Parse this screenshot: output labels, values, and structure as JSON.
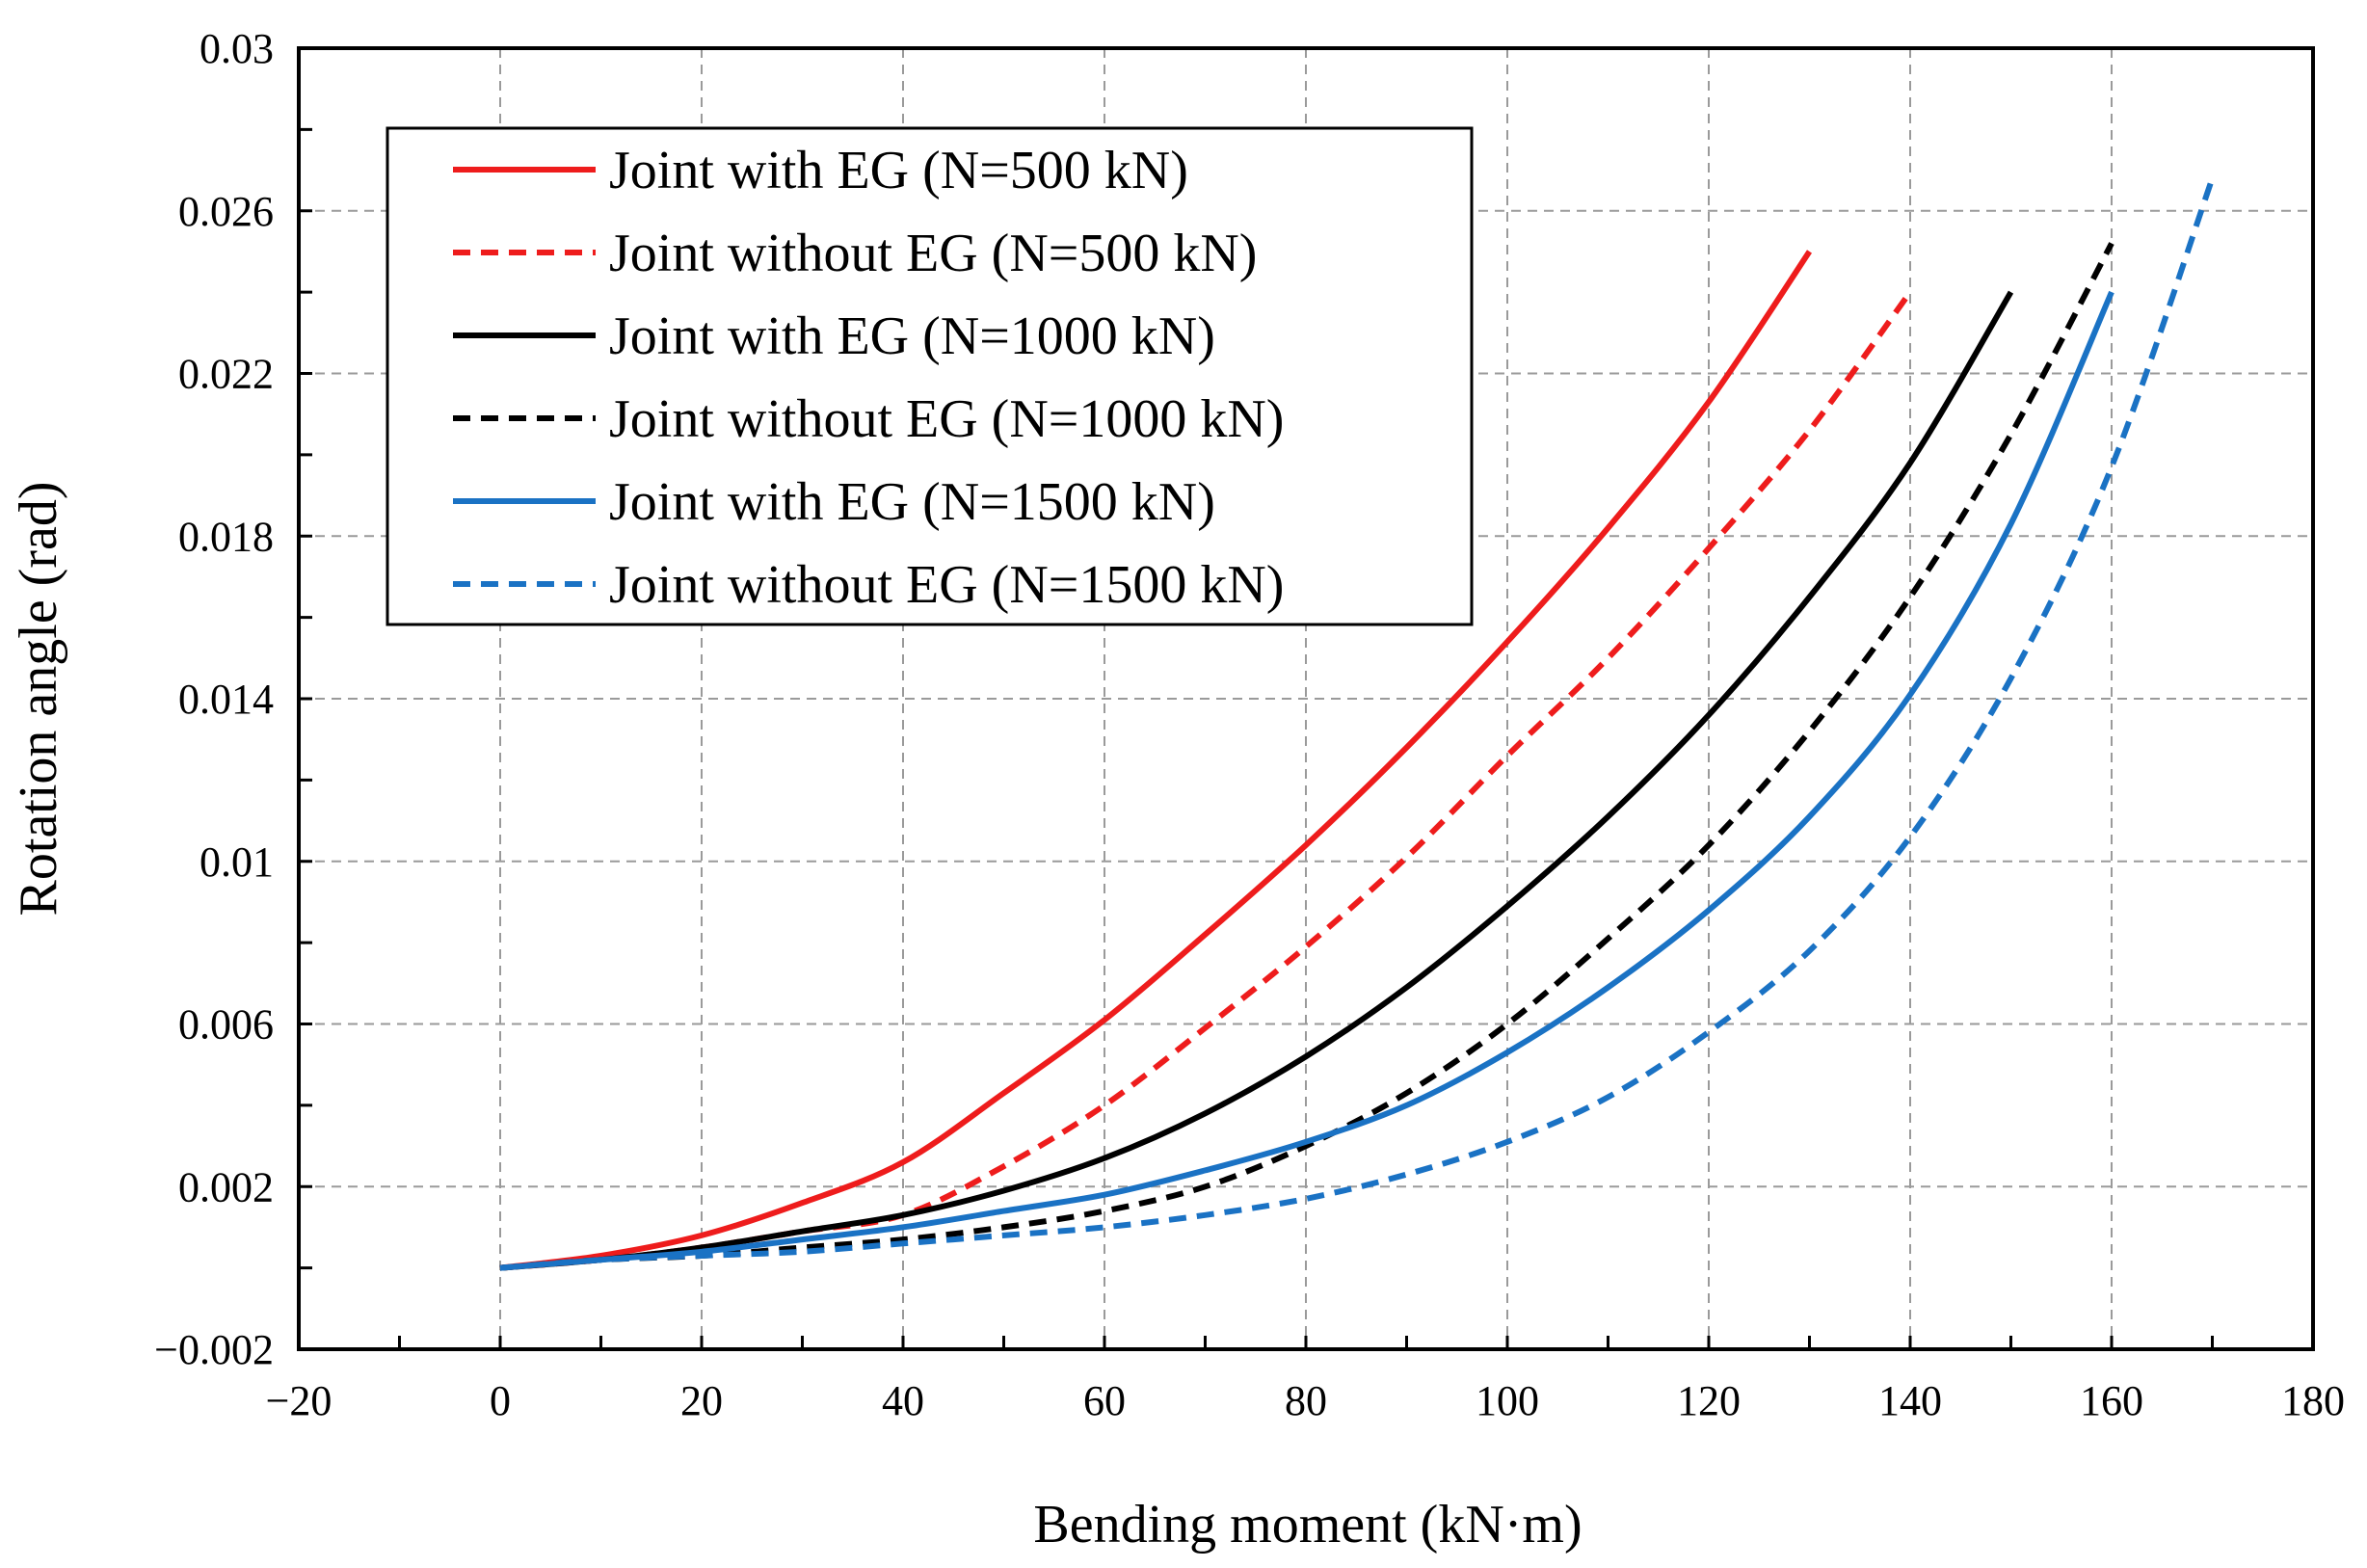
{
  "chart_data": {
    "type": "line",
    "title": "",
    "xlabel": "Bending moment (kN·m)",
    "ylabel": "Rotation angle (rad)",
    "xlim": [
      -20,
      180
    ],
    "ylim": [
      -0.002,
      0.03
    ],
    "x_ticks": [
      -20,
      0,
      20,
      40,
      60,
      80,
      100,
      120,
      140,
      160,
      180
    ],
    "x_tick_labels": [
      "−20",
      "0",
      "20",
      "40",
      "60",
      "80",
      "100",
      "120",
      "140",
      "160",
      "180"
    ],
    "y_ticks": [
      -0.002,
      0.002,
      0.006,
      0.01,
      0.014,
      0.018,
      0.022,
      0.026,
      0.03
    ],
    "y_tick_labels": [
      "−0.002",
      "0.002",
      "0.006",
      "0.01",
      "0.014",
      "0.018",
      "0.022",
      "0.026",
      "0.03"
    ],
    "grid": true,
    "legend_position": "top-left",
    "series": [
      {
        "name": "Joint with EG (N=500 kN)",
        "color": "#ee1c1c",
        "dash": "solid",
        "x": [
          0,
          10,
          20,
          30,
          40,
          50,
          60,
          70,
          80,
          90,
          100,
          110,
          120,
          130
        ],
        "y": [
          0.0,
          0.0003,
          0.0008,
          0.0016,
          0.0026,
          0.0043,
          0.0061,
          0.0082,
          0.0104,
          0.0128,
          0.0154,
          0.0182,
          0.0213,
          0.025
        ]
      },
      {
        "name": "Joint without EG (N=500 kN)",
        "color": "#ee1c1c",
        "dash": "dashed",
        "x": [
          0,
          10,
          20,
          30,
          40,
          50,
          60,
          70,
          80,
          90,
          100,
          110,
          120,
          130,
          140
        ],
        "y": [
          0.0,
          0.0002,
          0.0005,
          0.0009,
          0.0013,
          0.0025,
          0.004,
          0.0059,
          0.0079,
          0.0101,
          0.0126,
          0.015,
          0.0177,
          0.0206,
          0.024
        ]
      },
      {
        "name": "Joint with EG (N=1000 kN)",
        "color": "#000000",
        "dash": "solid",
        "x": [
          0,
          10,
          20,
          30,
          40,
          50,
          60,
          70,
          80,
          90,
          100,
          110,
          120,
          130,
          140,
          150
        ],
        "y": [
          0.0,
          0.0002,
          0.0005,
          0.0009,
          0.0013,
          0.0019,
          0.0027,
          0.0038,
          0.0052,
          0.0069,
          0.0089,
          0.0111,
          0.0136,
          0.0165,
          0.0198,
          0.024
        ]
      },
      {
        "name": "Joint without EG (N=1000 kN)",
        "color": "#000000",
        "dash": "dashed",
        "x": [
          0,
          10,
          20,
          30,
          40,
          50,
          60,
          70,
          80,
          90,
          100,
          110,
          120,
          130,
          140,
          150,
          160
        ],
        "y": [
          0.0,
          0.0002,
          0.0003,
          0.0005,
          0.0007,
          0.001,
          0.0014,
          0.002,
          0.003,
          0.0043,
          0.006,
          0.0081,
          0.0104,
          0.0132,
          0.0165,
          0.0205,
          0.0252
        ]
      },
      {
        "name": "Joint with EG (N=1500 kN)",
        "color": "#1a72c4",
        "dash": "solid",
        "x": [
          0,
          10,
          20,
          30,
          40,
          50,
          60,
          70,
          80,
          90,
          100,
          110,
          120,
          130,
          140,
          150,
          160
        ],
        "y": [
          0.0,
          0.0002,
          0.0004,
          0.0007,
          0.001,
          0.0014,
          0.0018,
          0.0024,
          0.0031,
          0.004,
          0.0053,
          0.0069,
          0.0088,
          0.0111,
          0.0141,
          0.0183,
          0.024
        ]
      },
      {
        "name": "Joint without EG (N=1500 kN)",
        "color": "#1a72c4",
        "dash": "dashed",
        "x": [
          0,
          10,
          20,
          30,
          40,
          50,
          60,
          70,
          80,
          90,
          100,
          110,
          120,
          130,
          140,
          150,
          160,
          170
        ],
        "y": [
          0.0,
          0.0002,
          0.0003,
          0.0004,
          0.0006,
          0.0008,
          0.001,
          0.0013,
          0.0017,
          0.0023,
          0.0031,
          0.0042,
          0.0058,
          0.0078,
          0.0106,
          0.0145,
          0.0197,
          0.0268
        ]
      }
    ]
  }
}
